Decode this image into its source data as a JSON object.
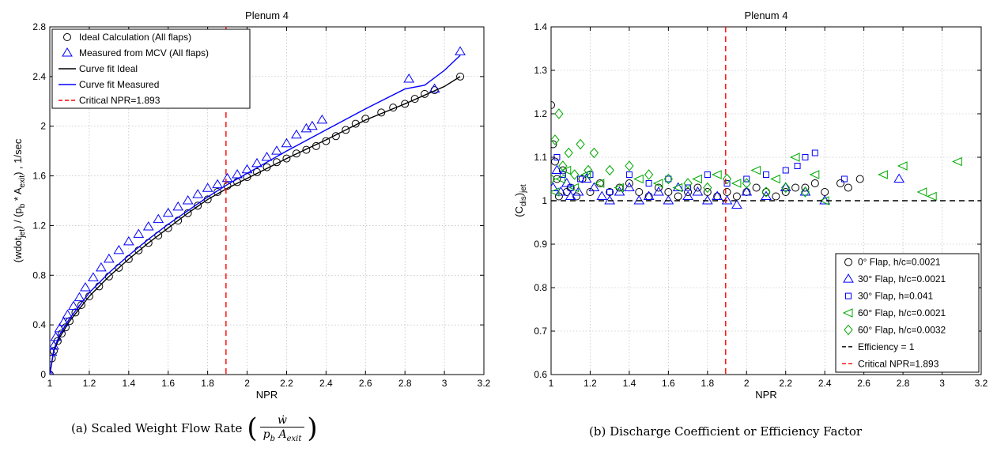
{
  "chart_data": [
    {
      "type": "scatter",
      "title": "Plenum 4",
      "xlabel": "NPR",
      "ylabel": "(wdot_jet) / (p_b * A_exit) , 1/sec",
      "xlim": [
        1,
        3.2
      ],
      "ylim": [
        0,
        2.8
      ],
      "xticks": [
        1,
        1.2,
        1.4,
        1.6,
        1.8,
        2,
        2.2,
        2.4,
        2.6,
        2.8,
        3,
        3.2
      ],
      "yticks": [
        0,
        0.4,
        0.8,
        1.2,
        1.6,
        2,
        2.4,
        2.8
      ],
      "grid": true,
      "legend_position": "top-left",
      "colors": {
        "ideal": "#000000",
        "measured": "#0000ff",
        "critical": "#ff0000"
      },
      "series": [
        {
          "name": "Ideal Calculation (All flaps)",
          "marker": "circle",
          "color": "#000000",
          "x": [
            1.0,
            1.01,
            1.02,
            1.04,
            1.06,
            1.08,
            1.1,
            1.13,
            1.16,
            1.2,
            1.25,
            1.3,
            1.35,
            1.4,
            1.45,
            1.5,
            1.55,
            1.6,
            1.65,
            1.7,
            1.75,
            1.8,
            1.85,
            1.9,
            1.95,
            2.0,
            2.05,
            2.1,
            2.15,
            2.2,
            2.25,
            2.3,
            2.35,
            2.4,
            2.45,
            2.5,
            2.55,
            2.6,
            2.68,
            2.74,
            2.8,
            2.85,
            2.9,
            2.95,
            3.08
          ],
          "y": [
            0.0,
            0.13,
            0.19,
            0.27,
            0.33,
            0.38,
            0.43,
            0.5,
            0.56,
            0.63,
            0.71,
            0.79,
            0.86,
            0.93,
            1.0,
            1.06,
            1.12,
            1.18,
            1.24,
            1.3,
            1.36,
            1.41,
            1.47,
            1.52,
            1.55,
            1.59,
            1.63,
            1.67,
            1.71,
            1.74,
            1.78,
            1.81,
            1.84,
            1.88,
            1.92,
            1.97,
            2.02,
            2.06,
            2.11,
            2.15,
            2.18,
            2.22,
            2.26,
            2.29,
            2.4
          ]
        },
        {
          "name": "Measured from MCV (All flaps)",
          "marker": "triangle",
          "color": "#0000ff",
          "x": [
            1.0,
            1.01,
            1.02,
            1.03,
            1.05,
            1.07,
            1.09,
            1.12,
            1.15,
            1.18,
            1.22,
            1.26,
            1.3,
            1.35,
            1.4,
            1.45,
            1.5,
            1.55,
            1.6,
            1.65,
            1.7,
            1.75,
            1.8,
            1.85,
            1.9,
            1.95,
            2.0,
            2.05,
            2.1,
            2.15,
            2.2,
            2.25,
            2.3,
            2.33,
            2.38,
            2.82,
            2.95,
            3.08
          ],
          "y": [
            0.0,
            0.18,
            0.23,
            0.3,
            0.37,
            0.42,
            0.48,
            0.55,
            0.62,
            0.7,
            0.78,
            0.86,
            0.93,
            1.0,
            1.07,
            1.13,
            1.19,
            1.25,
            1.3,
            1.35,
            1.4,
            1.45,
            1.5,
            1.53,
            1.58,
            1.61,
            1.65,
            1.7,
            1.75,
            1.8,
            1.86,
            1.93,
            1.98,
            2.0,
            2.05,
            2.38,
            2.3,
            2.6
          ]
        },
        {
          "name": "Curve fit Ideal",
          "type": "line",
          "color": "#000000",
          "x": [
            1.0,
            1.02,
            1.05,
            1.1,
            1.2,
            1.3,
            1.4,
            1.5,
            1.6,
            1.7,
            1.8,
            1.9,
            2.0,
            2.2,
            2.4,
            2.6,
            2.8,
            3.0,
            3.08
          ],
          "y": [
            0.0,
            0.19,
            0.3,
            0.43,
            0.63,
            0.79,
            0.93,
            1.06,
            1.18,
            1.3,
            1.41,
            1.5,
            1.58,
            1.74,
            1.89,
            2.05,
            2.18,
            2.32,
            2.4
          ]
        },
        {
          "name": "Curve fit Measured",
          "type": "line",
          "color": "#0000ff",
          "x": [
            1.0,
            1.02,
            1.05,
            1.1,
            1.2,
            1.3,
            1.4,
            1.5,
            1.6,
            1.7,
            1.8,
            1.9,
            2.0,
            2.2,
            2.4,
            2.6,
            2.8,
            2.9,
            3.0,
            3.08
          ],
          "y": [
            0.0,
            0.2,
            0.32,
            0.45,
            0.66,
            0.82,
            0.96,
            1.09,
            1.21,
            1.32,
            1.43,
            1.53,
            1.62,
            1.8,
            1.97,
            2.14,
            2.3,
            2.33,
            2.45,
            2.57
          ]
        },
        {
          "name": "Critical NPR=1.893",
          "type": "vline",
          "color": "#ff0000",
          "x": 1.893
        }
      ]
    },
    {
      "type": "scatter",
      "title": "Plenum 4",
      "xlabel": "NPR",
      "ylabel": "(C_dis)_jet",
      "xlim": [
        1,
        3.2
      ],
      "ylim": [
        0.6,
        1.4
      ],
      "xticks": [
        1,
        1.2,
        1.4,
        1.6,
        1.8,
        2,
        2.2,
        2.4,
        2.6,
        2.8,
        3,
        3.2
      ],
      "yticks": [
        0.6,
        0.7,
        0.8,
        0.9,
        1,
        1.1,
        1.2,
        1.3,
        1.4
      ],
      "grid": true,
      "legend_position": "bottom-right",
      "colors": {
        "flap0": "#000000",
        "flap30": "#0000ff",
        "flap60": "#00aa00",
        "efficiency": "#000000",
        "critical": "#ff0000"
      },
      "series": [
        {
          "name": "0° Flap, h/c=0.0021",
          "marker": "circle",
          "color": "#000000",
          "x": [
            1.0,
            1.01,
            1.02,
            1.03,
            1.04,
            1.06,
            1.08,
            1.1,
            1.13,
            1.16,
            1.2,
            1.25,
            1.3,
            1.35,
            1.4,
            1.45,
            1.5,
            1.55,
            1.6,
            1.65,
            1.7,
            1.75,
            1.8,
            1.85,
            1.9,
            1.95,
            2.0,
            2.05,
            2.1,
            2.15,
            2.2,
            2.25,
            2.3,
            2.35,
            2.4,
            2.48,
            2.52,
            2.58
          ],
          "y": [
            1.22,
            1.13,
            1.09,
            1.05,
            1.01,
            1.07,
            1.02,
            1.03,
            1.01,
            1.05,
            1.02,
            1.04,
            1.02,
            1.03,
            1.04,
            1.02,
            1.01,
            1.03,
            1.02,
            1.01,
            1.02,
            1.03,
            1.02,
            1.01,
            1.02,
            1.01,
            1.02,
            1.03,
            1.02,
            1.01,
            1.02,
            1.03,
            1.03,
            1.04,
            1.02,
            1.04,
            1.03,
            1.05
          ]
        },
        {
          "name": "30° Flap, h/c=0.0021",
          "marker": "triangle",
          "color": "#0000ff",
          "x": [
            1.01,
            1.03,
            1.05,
            1.08,
            1.1,
            1.14,
            1.18,
            1.22,
            1.26,
            1.3,
            1.35,
            1.4,
            1.45,
            1.5,
            1.55,
            1.6,
            1.65,
            1.7,
            1.75,
            1.8,
            1.85,
            1.9,
            1.95,
            2.0,
            2.1,
            2.2,
            2.3,
            2.4,
            2.78
          ],
          "y": [
            1.03,
            1.07,
            1.02,
            1.04,
            1.01,
            1.02,
            1.05,
            1.03,
            1.01,
            1.0,
            1.02,
            1.03,
            1.0,
            1.01,
            1.02,
            1.0,
            1.03,
            1.01,
            1.02,
            1.0,
            1.01,
            1.0,
            0.99,
            1.02,
            1.01,
            1.03,
            1.02,
            1.0,
            1.05
          ]
        },
        {
          "name": "30° Flap, h=0.041",
          "marker": "square",
          "color": "#0000ff",
          "x": [
            1.03,
            1.06,
            1.1,
            1.15,
            1.2,
            1.3,
            1.4,
            1.5,
            1.6,
            1.7,
            1.8,
            1.9,
            2.0,
            2.1,
            2.2,
            2.26,
            2.3,
            2.35,
            2.5
          ],
          "y": [
            1.1,
            1.06,
            1.03,
            1.05,
            1.06,
            1.02,
            1.06,
            1.04,
            1.05,
            1.03,
            1.06,
            1.04,
            1.05,
            1.06,
            1.07,
            1.08,
            1.1,
            1.11,
            1.05
          ]
        },
        {
          "name": "60° Flap, h/c=0.0021",
          "marker": "triangle-left",
          "color": "#00aa00",
          "x": [
            1.02,
            1.05,
            1.08,
            1.12,
            1.18,
            1.25,
            1.35,
            1.45,
            1.55,
            1.65,
            1.75,
            1.85,
            1.95,
            2.05,
            2.15,
            2.25,
            2.35,
            2.4,
            2.7,
            2.8,
            2.9,
            2.95,
            3.08
          ],
          "y": [
            1.02,
            1.05,
            1.07,
            1.03,
            1.06,
            1.04,
            1.03,
            1.05,
            1.04,
            1.03,
            1.05,
            1.06,
            1.04,
            1.07,
            1.05,
            1.1,
            1.06,
            1.0,
            1.06,
            1.08,
            1.02,
            1.01,
            1.09
          ]
        },
        {
          "name": "60° Flap, h/c=0.0032",
          "marker": "diamond",
          "color": "#00aa00",
          "x": [
            1.0,
            1.02,
            1.04,
            1.06,
            1.09,
            1.12,
            1.15,
            1.19,
            1.22,
            1.3,
            1.4,
            1.5,
            1.6,
            1.7,
            1.8,
            1.9,
            2.0,
            2.1,
            2.2,
            2.3
          ],
          "y": [
            1.05,
            1.14,
            1.2,
            1.08,
            1.11,
            1.06,
            1.13,
            1.07,
            1.11,
            1.07,
            1.08,
            1.06,
            1.05,
            1.04,
            1.03,
            1.05,
            1.04,
            1.02,
            1.03,
            1.02
          ]
        },
        {
          "name": "Efficiency = 1",
          "type": "hline",
          "color": "#000000",
          "y": 1
        },
        {
          "name": "Critical NPR=1.893",
          "type": "vline",
          "color": "#ff0000",
          "x": 1.893
        }
      ]
    }
  ],
  "captions": {
    "left_prefix": "(a) Scaled Weight Flow Rate",
    "right": "(b) Discharge Coefficient or Efficiency Factor",
    "formula_num": "ẇ",
    "formula_den_p": "p",
    "formula_den_p_sub": "b",
    "formula_den_a": "A",
    "formula_den_a_sub": "exit"
  }
}
